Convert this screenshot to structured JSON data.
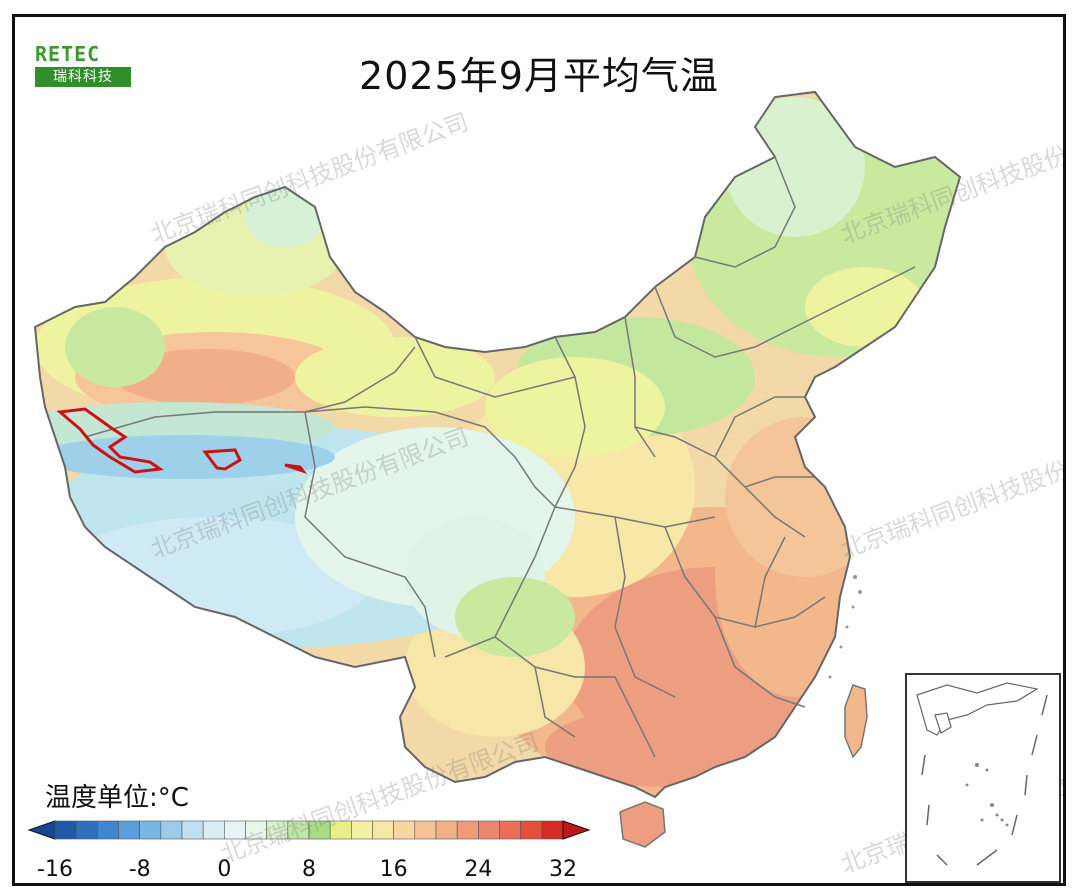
{
  "title": "2025年9月平均气温",
  "logo": {
    "top": "RETEC",
    "bottom": "瑞科科技"
  },
  "watermark": "北京瑞科同创科技股份有限公司",
  "unit_label": "温度单位:°C",
  "colorbar": {
    "ticks": [
      "-16",
      "-8",
      "0",
      "8",
      "16",
      "24",
      "32"
    ],
    "min": -16,
    "max": 32,
    "step": 2,
    "colors": [
      "#1f5aa8",
      "#2f6fbd",
      "#3f86cc",
      "#5a9fd9",
      "#7ab6e3",
      "#9ccbea",
      "#bfe0f0",
      "#d8eef4",
      "#e6f5f3",
      "#e9f6ea",
      "#d7f0cc",
      "#bfe6a4",
      "#a9dc84",
      "#e7ef8a",
      "#f6f1a0",
      "#f6e6a8",
      "#f7d6a3",
      "#f5c496",
      "#f2b087",
      "#ee9b7c",
      "#ea8670",
      "#e86e5a",
      "#e2503c",
      "#d62a24"
    ],
    "under_color": "#17478f",
    "over_color": "#c01818"
  },
  "legend_colors": {
    "border": "#666666",
    "alert_outline": "#cc1111"
  }
}
